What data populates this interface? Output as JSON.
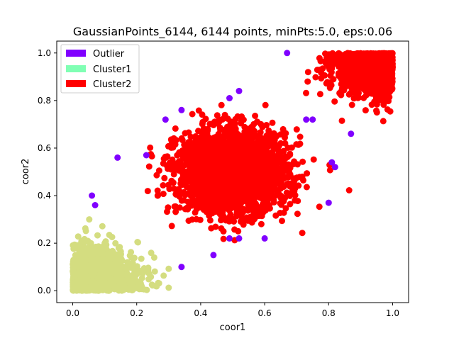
{
  "chart_data": {
    "type": "scatter",
    "title": "GaussianPoints_6144, 6144 points, minPts:5.0, eps:0.06",
    "xlabel": "coor1",
    "ylabel": "coor2",
    "xlim": [
      -0.05,
      1.05
    ],
    "ylim": [
      -0.05,
      1.05
    ],
    "xticks": [
      0.0,
      0.2,
      0.4,
      0.6,
      0.8,
      1.0
    ],
    "yticks": [
      0.0,
      0.2,
      0.4,
      0.6,
      0.8,
      1.0
    ],
    "xtick_labels": [
      "0.0",
      "0.2",
      "0.4",
      "0.6",
      "0.8",
      "1.0"
    ],
    "ytick_labels": [
      "0.0",
      "0.2",
      "0.4",
      "0.6",
      "0.8",
      "1.0"
    ],
    "grid": false,
    "legend_position": "top-left",
    "legend": [
      {
        "label": "Outlier",
        "color": "#8000ff"
      },
      {
        "label": "Cluster1",
        "color": "#80ffb4"
      },
      {
        "label": "Cluster2",
        "color": "#ff0000"
      }
    ],
    "series": [
      {
        "name": "Outlier",
        "color": "#8000ff",
        "points": [
          [
            0.67,
            1.0
          ],
          [
            0.49,
            0.81
          ],
          [
            0.52,
            0.84
          ],
          [
            0.29,
            0.72
          ],
          [
            0.34,
            0.76
          ],
          [
            0.73,
            0.72
          ],
          [
            0.75,
            0.72
          ],
          [
            0.87,
            0.66
          ],
          [
            0.14,
            0.56
          ],
          [
            0.23,
            0.57
          ],
          [
            0.81,
            0.54
          ],
          [
            0.82,
            0.52
          ],
          [
            0.06,
            0.4
          ],
          [
            0.07,
            0.36
          ],
          [
            0.8,
            0.37
          ],
          [
            0.49,
            0.22
          ],
          [
            0.52,
            0.22
          ],
          [
            0.6,
            0.22
          ],
          [
            0.44,
            0.15
          ],
          [
            0.34,
            0.1
          ]
        ]
      },
      {
        "name": "Cluster2 (center)",
        "color": "#ff0000",
        "center": [
          0.5,
          0.5
        ],
        "spread": 0.085
      },
      {
        "name": "Cluster2 (upper-right)",
        "color": "#ff0000",
        "box": [
          [
            0.72,
            0.7
          ],
          [
            1.0,
            1.0
          ]
        ]
      },
      {
        "name": "Cluster (lower-left)",
        "color": "#d4dd80",
        "box": [
          [
            0.0,
            0.0
          ],
          [
            0.3,
            0.3
          ]
        ]
      }
    ]
  }
}
